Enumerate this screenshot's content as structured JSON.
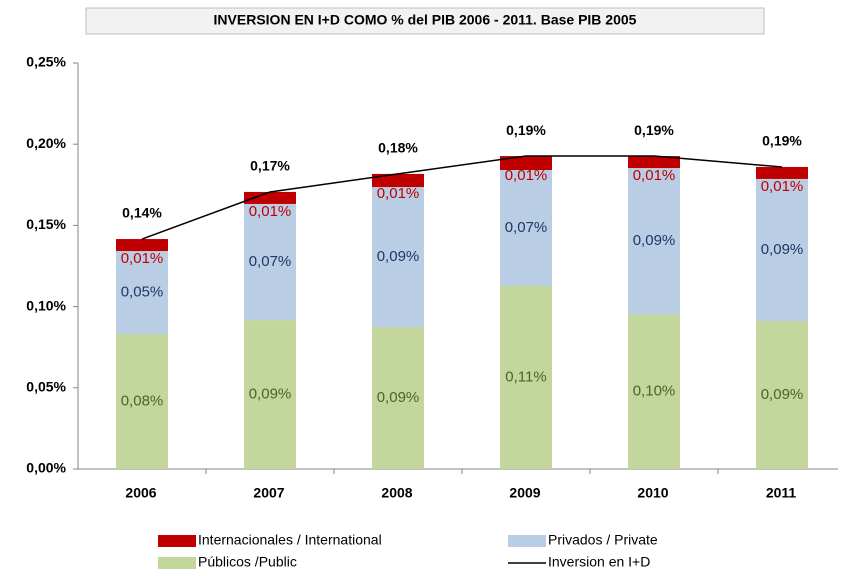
{
  "chart_data": {
    "type": "bar",
    "stacked": true,
    "title": "INVERSION EN I+D COMO % del PIB 2006 - 2011. Base PIB 2005",
    "categories": [
      "2006",
      "2007",
      "2008",
      "2009",
      "2010",
      "2011"
    ],
    "series": [
      {
        "name": "Internacionales / International",
        "color": "#c00000",
        "label_color": "#c00000",
        "values": [
          0.0074,
          0.0074,
          0.0081,
          0.0086,
          0.0074,
          0.0074
        ],
        "value_labels": [
          "0,01%",
          "0,01%",
          "0,01%",
          "0,01%",
          "0,01%",
          "0,01%"
        ]
      },
      {
        "name": "Privados / Private",
        "color": "#b9cde5",
        "label_color": "#1f3864",
        "values": [
          0.0511,
          0.0715,
          0.0862,
          0.0714,
          0.0899,
          0.0875
        ],
        "value_labels": [
          "0,05%",
          "0,07%",
          "0,09%",
          "0,07%",
          "0,09%",
          "0,09%"
        ]
      },
      {
        "name": "Públicos /Public",
        "color": "#c3d69b",
        "label_color": "#4f6228",
        "values": [
          0.0831,
          0.0917,
          0.0874,
          0.1127,
          0.0954,
          0.0911
        ],
        "value_labels": [
          "0,08%",
          "0,09%",
          "0,09%",
          "0,11%",
          "0,10%",
          "0,09%"
        ]
      },
      {
        "name": "Inversion en I+D",
        "type": "line",
        "color": "#000000",
        "label_color": "#000000",
        "values": [
          0.1416,
          0.1706,
          0.1817,
          0.1927,
          0.1927,
          0.186
        ],
        "value_labels": [
          "0,14%",
          "0,17%",
          "0,18%",
          "0,19%",
          "0,19%",
          "0,19%"
        ]
      }
    ],
    "ylim": [
      0,
      0.25
    ],
    "yticks": [
      {
        "value": 0,
        "label": "0,00%"
      },
      {
        "value": 0.05,
        "label": "0,05%"
      },
      {
        "value": 0.1,
        "label": "0,10%"
      },
      {
        "value": 0.15,
        "label": "0,15%"
      },
      {
        "value": 0.2,
        "label": "0,20%"
      },
      {
        "value": 0.25,
        "label": "0,25%"
      }
    ],
    "grid": false,
    "legend": "bottom"
  }
}
